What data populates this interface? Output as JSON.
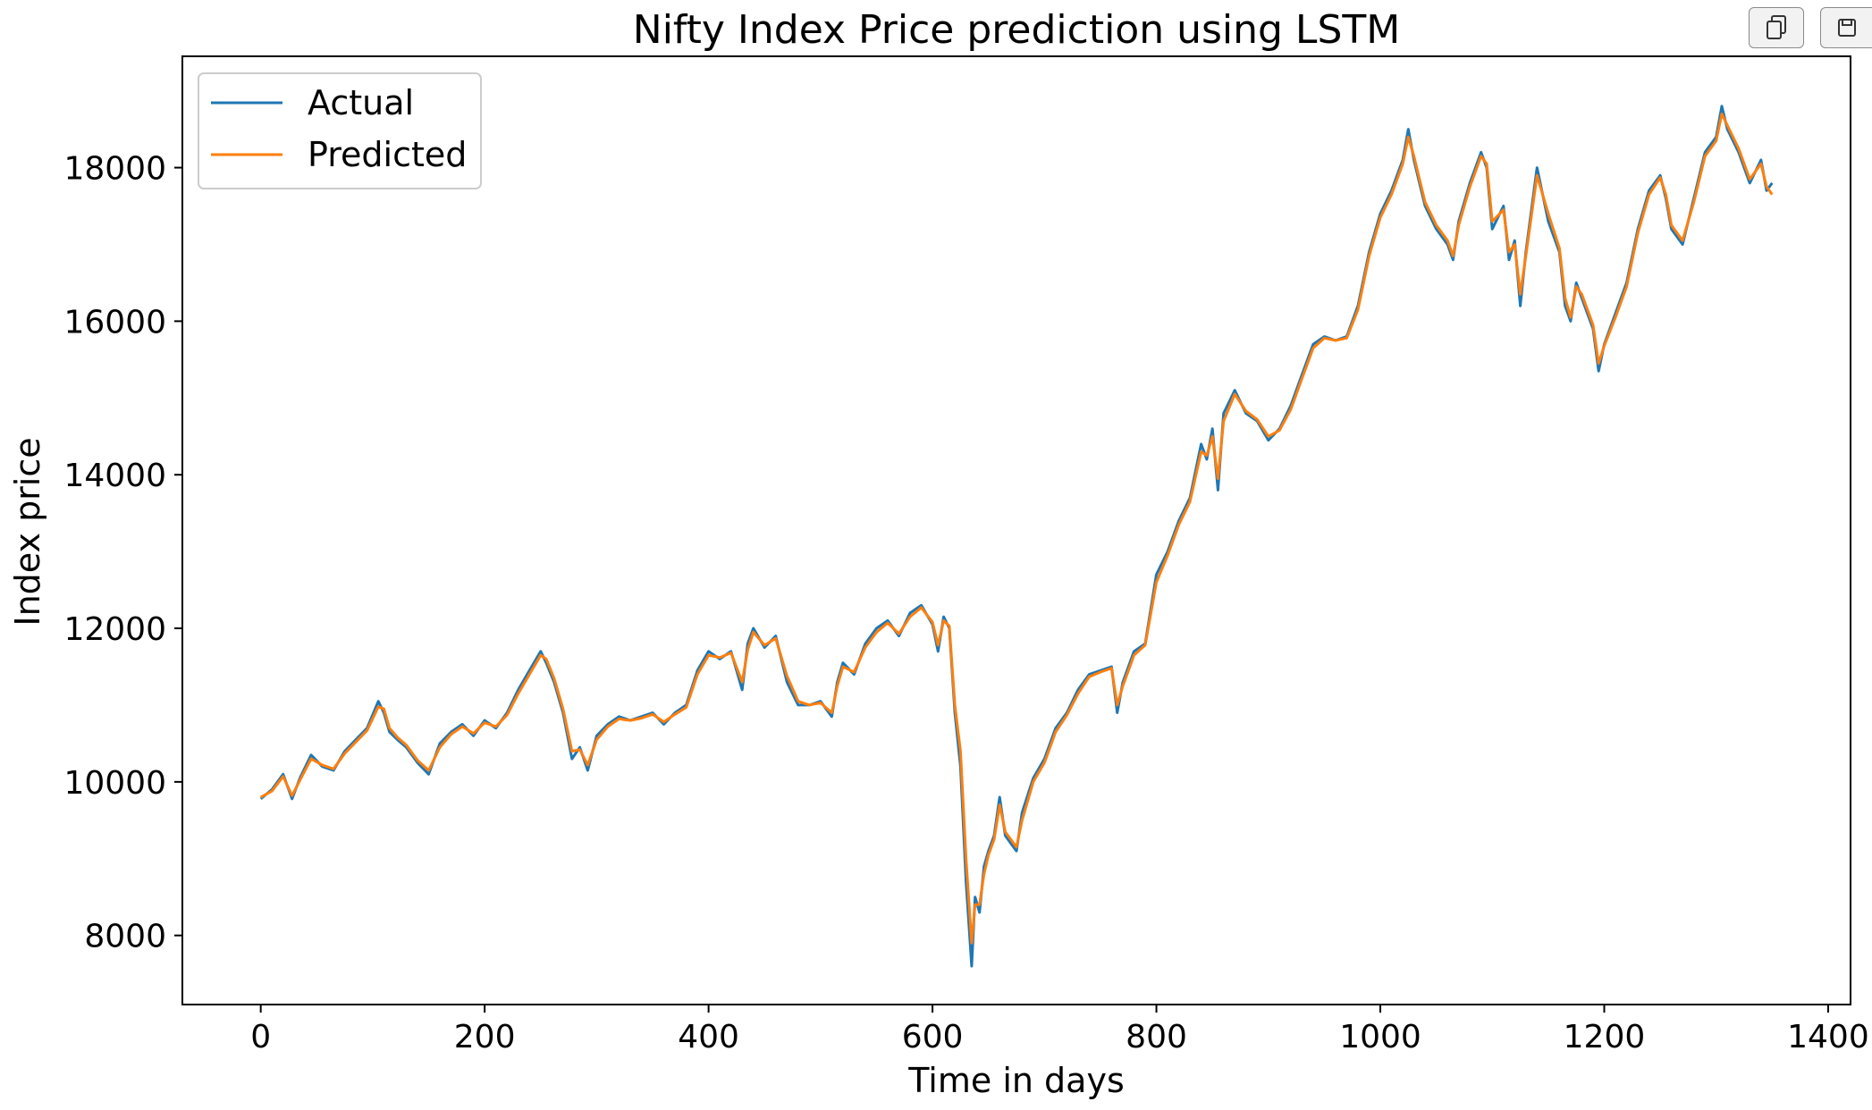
{
  "toolbar": {
    "icons": [
      "copy-icon",
      "save-icon"
    ]
  },
  "chart_data": {
    "type": "line",
    "title": "Nifty Index Price prediction using LSTM",
    "xlabel": "Time in days",
    "ylabel": "Index price",
    "xlim": [
      -70,
      1420
    ],
    "ylim": [
      7100,
      19450
    ],
    "xticks": [
      0,
      200,
      400,
      600,
      800,
      1000,
      1200,
      1400
    ],
    "yticks": [
      8000,
      10000,
      12000,
      14000,
      16000,
      18000
    ],
    "xtick_labels": [
      "0",
      "200",
      "400",
      "600",
      "800",
      "1000",
      "1200",
      "1400"
    ],
    "ytick_labels": [
      "8000",
      "10000",
      "12000",
      "14000",
      "16000",
      "18000"
    ],
    "grid": false,
    "legend": "upper-left",
    "series": [
      {
        "name": "Actual",
        "color": "#1f77b4",
        "x": [
          0,
          10,
          20,
          28,
          35,
          45,
          55,
          65,
          75,
          85,
          95,
          105,
          110,
          115,
          122,
          130,
          140,
          150,
          160,
          170,
          180,
          190,
          200,
          210,
          220,
          230,
          240,
          250,
          255,
          262,
          270,
          278,
          285,
          292,
          300,
          310,
          320,
          330,
          340,
          350,
          360,
          370,
          380,
          390,
          400,
          410,
          420,
          430,
          435,
          440,
          450,
          460,
          470,
          480,
          490,
          500,
          510,
          515,
          520,
          530,
          540,
          550,
          560,
          570,
          580,
          590,
          600,
          605,
          610,
          615,
          620,
          625,
          630,
          635,
          638,
          642,
          646,
          650,
          655,
          660,
          665,
          670,
          675,
          680,
          690,
          700,
          710,
          720,
          730,
          740,
          750,
          760,
          765,
          770,
          780,
          790,
          800,
          810,
          820,
          830,
          840,
          845,
          850,
          855,
          860,
          870,
          880,
          890,
          900,
          910,
          920,
          930,
          940,
          950,
          960,
          970,
          980,
          990,
          1000,
          1010,
          1020,
          1025,
          1030,
          1035,
          1040,
          1050,
          1060,
          1065,
          1070,
          1080,
          1090,
          1095,
          1100,
          1110,
          1115,
          1120,
          1125,
          1130,
          1140,
          1150,
          1160,
          1165,
          1170,
          1175,
          1180,
          1190,
          1195,
          1200,
          1210,
          1220,
          1230,
          1240,
          1250,
          1255,
          1260,
          1270,
          1280,
          1290,
          1300,
          1305,
          1310,
          1320,
          1325,
          1330,
          1340,
          1345,
          1350
        ],
        "y": [
          9780,
          9900,
          10100,
          9780,
          10050,
          10350,
          10200,
          10150,
          10400,
          10550,
          10700,
          11050,
          10900,
          10650,
          10550,
          10450,
          10250,
          10100,
          10500,
          10650,
          10750,
          10600,
          10800,
          10700,
          10900,
          11200,
          11450,
          11700,
          11550,
          11300,
          10900,
          10300,
          10450,
          10150,
          10600,
          10750,
          10850,
          10800,
          10850,
          10900,
          10750,
          10900,
          11000,
          11450,
          11700,
          11600,
          11700,
          11200,
          11800,
          12000,
          11750,
          11900,
          11300,
          11000,
          11000,
          11050,
          10850,
          11300,
          11550,
          11400,
          11800,
          12000,
          12100,
          11900,
          12200,
          12300,
          12050,
          11700,
          12150,
          12000,
          10900,
          10200,
          8700,
          7600,
          8500,
          8300,
          8900,
          9100,
          9300,
          9800,
          9300,
          9200,
          9100,
          9600,
          10050,
          10300,
          10700,
          10900,
          11200,
          11400,
          11450,
          11500,
          10900,
          11300,
          11700,
          11800,
          12700,
          13000,
          13400,
          13700,
          14400,
          14200,
          14600,
          13800,
          14800,
          15100,
          14800,
          14700,
          14450,
          14600,
          14900,
          15300,
          15700,
          15800,
          15750,
          15800,
          16200,
          16900,
          17400,
          17700,
          18100,
          18500,
          18100,
          17800,
          17500,
          17200,
          17000,
          16800,
          17300,
          17800,
          18200,
          18000,
          17200,
          17500,
          16800,
          17050,
          16200,
          16900,
          18000,
          17300,
          16900,
          16200,
          16000,
          16500,
          16300,
          15900,
          15350,
          15700,
          16100,
          16500,
          17200,
          17700,
          17900,
          17600,
          17200,
          17000,
          17600,
          18200,
          18400,
          18800,
          18500,
          18200,
          18000,
          17800,
          18100,
          17700,
          17800
        ]
      },
      {
        "name": "Predicted",
        "color": "#ff7f0e",
        "x": [
          0,
          10,
          20,
          28,
          35,
          45,
          55,
          65,
          75,
          85,
          95,
          105,
          110,
          115,
          122,
          130,
          140,
          150,
          160,
          170,
          180,
          190,
          200,
          210,
          220,
          230,
          240,
          250,
          255,
          262,
          270,
          278,
          285,
          292,
          300,
          310,
          320,
          330,
          340,
          350,
          360,
          370,
          380,
          390,
          400,
          410,
          420,
          430,
          435,
          440,
          450,
          460,
          470,
          480,
          490,
          500,
          510,
          515,
          520,
          530,
          540,
          550,
          560,
          570,
          580,
          590,
          600,
          605,
          610,
          615,
          620,
          625,
          630,
          635,
          638,
          642,
          646,
          650,
          655,
          660,
          665,
          670,
          675,
          680,
          690,
          700,
          710,
          720,
          730,
          740,
          750,
          760,
          765,
          770,
          780,
          790,
          800,
          810,
          820,
          830,
          840,
          845,
          850,
          855,
          860,
          870,
          880,
          890,
          900,
          910,
          920,
          930,
          940,
          950,
          960,
          970,
          980,
          990,
          1000,
          1010,
          1020,
          1025,
          1030,
          1035,
          1040,
          1050,
          1060,
          1065,
          1070,
          1080,
          1090,
          1095,
          1100,
          1110,
          1115,
          1120,
          1125,
          1130,
          1140,
          1150,
          1160,
          1165,
          1170,
          1175,
          1180,
          1190,
          1195,
          1200,
          1210,
          1220,
          1230,
          1240,
          1250,
          1255,
          1260,
          1270,
          1280,
          1290,
          1300,
          1305,
          1310,
          1320,
          1325,
          1330,
          1340,
          1345,
          1350
        ],
        "y": [
          9800,
          9880,
          10070,
          9820,
          10020,
          10300,
          10220,
          10170,
          10370,
          10520,
          10670,
          10980,
          10950,
          10700,
          10580,
          10480,
          10280,
          10150,
          10450,
          10620,
          10720,
          10630,
          10770,
          10720,
          10870,
          11150,
          11400,
          11650,
          11600,
          11350,
          10950,
          10400,
          10420,
          10220,
          10550,
          10720,
          10820,
          10800,
          10830,
          10880,
          10780,
          10880,
          10970,
          11400,
          11650,
          11620,
          11680,
          11300,
          11720,
          11950,
          11780,
          11870,
          11380,
          11050,
          11000,
          11030,
          10900,
          11250,
          11500,
          11430,
          11750,
          11950,
          12070,
          11930,
          12150,
          12270,
          12080,
          11780,
          12100,
          12030,
          11000,
          10400,
          9000,
          7900,
          8400,
          8400,
          8800,
          9050,
          9250,
          9700,
          9350,
          9250,
          9150,
          9500,
          10000,
          10250,
          10650,
          10870,
          11150,
          11370,
          11430,
          11480,
          11000,
          11250,
          11650,
          11780,
          12600,
          12950,
          13350,
          13650,
          14300,
          14250,
          14500,
          13950,
          14700,
          15050,
          14830,
          14720,
          14500,
          14580,
          14850,
          15250,
          15650,
          15780,
          15750,
          15780,
          16150,
          16850,
          17350,
          17650,
          18050,
          18400,
          18150,
          17850,
          17550,
          17250,
          17050,
          16850,
          17250,
          17750,
          18150,
          18050,
          17300,
          17450,
          16900,
          17000,
          16350,
          16850,
          17900,
          17400,
          16950,
          16300,
          16050,
          16450,
          16350,
          15950,
          15450,
          15680,
          16050,
          16450,
          17150,
          17650,
          17870,
          17650,
          17250,
          17050,
          17550,
          18150,
          18350,
          18700,
          18550,
          18250,
          18050,
          17850,
          18050,
          17750,
          17650
        ]
      }
    ]
  }
}
